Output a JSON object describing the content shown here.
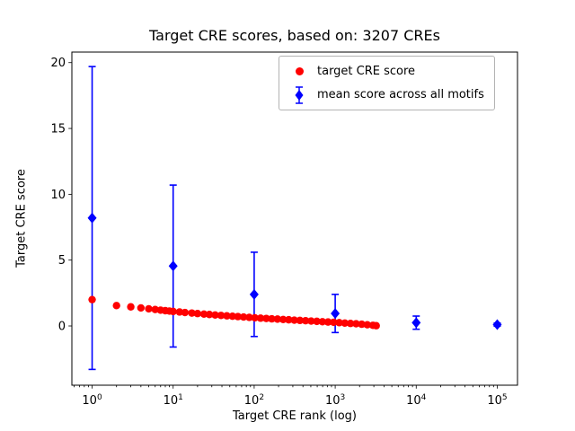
{
  "chart_data": {
    "type": "scatter",
    "title": "Target CRE scores, based on: 3207 CREs",
    "xlabel": "Target CRE rank (log)",
    "ylabel": "Target CRE score",
    "x_scale": "log",
    "xlim_log10": [
      -0.25,
      5.25
    ],
    "ylim": [
      -4.5,
      20.8
    ],
    "x_ticks_log10": [
      0,
      1,
      2,
      3,
      4,
      5
    ],
    "x_minor_ticks": true,
    "y_ticks": [
      0,
      5,
      10,
      15,
      20
    ],
    "grid": false,
    "legend": {
      "position": "upper center-right"
    },
    "series": [
      {
        "name": "target CRE score",
        "color": "#ff0000",
        "marker": "circle",
        "points": [
          [
            1,
            2.0
          ],
          [
            2,
            1.55
          ],
          [
            3,
            1.45
          ],
          [
            4,
            1.37
          ],
          [
            5,
            1.3
          ],
          [
            6,
            1.25
          ],
          [
            7,
            1.2
          ],
          [
            8,
            1.16
          ],
          [
            9,
            1.13
          ],
          [
            10,
            1.1
          ],
          [
            12,
            1.06
          ],
          [
            14,
            1.02
          ],
          [
            17,
            0.98
          ],
          [
            20,
            0.94
          ],
          [
            24,
            0.9
          ],
          [
            28,
            0.87
          ],
          [
            33,
            0.83
          ],
          [
            39,
            0.8
          ],
          [
            46,
            0.77
          ],
          [
            54,
            0.74
          ],
          [
            63,
            0.71
          ],
          [
            74,
            0.68
          ],
          [
            87,
            0.65
          ],
          [
            102,
            0.62
          ],
          [
            120,
            0.59
          ],
          [
            141,
            0.57
          ],
          [
            165,
            0.54
          ],
          [
            194,
            0.52
          ],
          [
            228,
            0.49
          ],
          [
            267,
            0.47
          ],
          [
            313,
            0.44
          ],
          [
            367,
            0.42
          ],
          [
            431,
            0.4
          ],
          [
            505,
            0.37
          ],
          [
            593,
            0.35
          ],
          [
            696,
            0.32
          ],
          [
            816,
            0.3
          ],
          [
            957,
            0.28
          ],
          [
            1122,
            0.25
          ],
          [
            1316,
            0.22
          ],
          [
            1544,
            0.19
          ],
          [
            1811,
            0.17
          ],
          [
            2124,
            0.13
          ],
          [
            2491,
            0.09
          ],
          [
            2922,
            0.05
          ],
          [
            3207,
            0.02
          ]
        ]
      },
      {
        "name": "mean score across all motifs",
        "color": "#0000ff",
        "marker": "diamond",
        "x": [
          1,
          10,
          100,
          1000,
          10000,
          100000
        ],
        "y": [
          8.2,
          4.55,
          2.4,
          0.95,
          0.25,
          0.1
        ],
        "yerr": [
          11.5,
          6.15,
          3.2,
          1.45,
          0.5,
          0.12
        ]
      }
    ]
  }
}
